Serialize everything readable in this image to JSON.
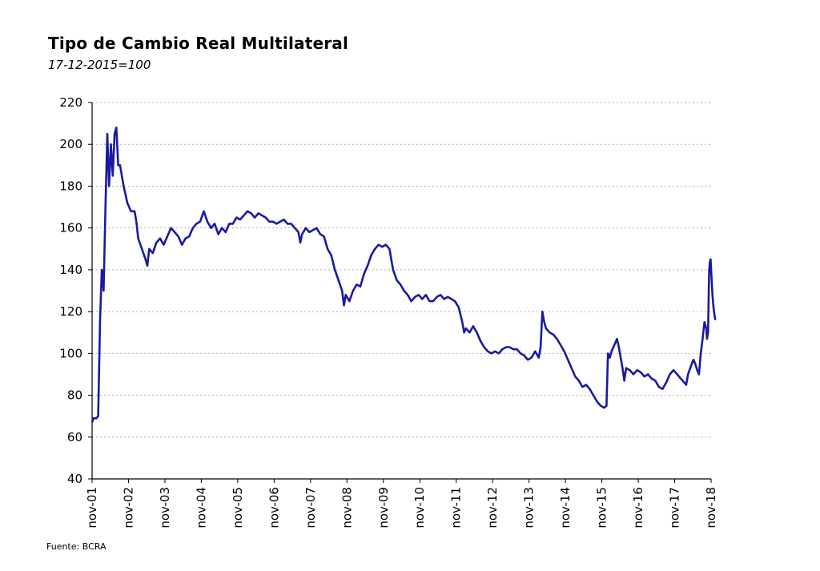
{
  "chart_data": {
    "type": "line",
    "title": "Tipo de Cambio Real Multilateral",
    "subtitle": "17-12-2015=100",
    "source": "Fuente: BCRA",
    "xlabel": "",
    "ylabel": "",
    "ylim": [
      40,
      220
    ],
    "yticks": [
      40,
      60,
      80,
      100,
      120,
      140,
      160,
      180,
      200,
      220
    ],
    "xlim": [
      2001.833,
      2018.833
    ],
    "xticks": [
      "nov-01",
      "nov-02",
      "nov-03",
      "nov-04",
      "nov-05",
      "nov-06",
      "nov-07",
      "nov-08",
      "nov-09",
      "nov-10",
      "nov-11",
      "nov-12",
      "nov-13",
      "nov-14",
      "nov-15",
      "nov-16",
      "nov-17",
      "nov-18"
    ],
    "grid": true,
    "line_color": "#1a1aa0",
    "series": [
      {
        "points": [
          [
            2001.833,
            67
          ],
          [
            2001.87,
            69
          ],
          [
            2001.95,
            69
          ],
          [
            2002.0,
            70
          ],
          [
            2002.05,
            115
          ],
          [
            2002.1,
            140
          ],
          [
            2002.15,
            130
          ],
          [
            2002.2,
            170
          ],
          [
            2002.25,
            205
          ],
          [
            2002.3,
            180
          ],
          [
            2002.35,
            200
          ],
          [
            2002.4,
            185
          ],
          [
            2002.45,
            205
          ],
          [
            2002.5,
            208
          ],
          [
            2002.55,
            190
          ],
          [
            2002.6,
            190
          ],
          [
            2002.7,
            180
          ],
          [
            2002.8,
            172
          ],
          [
            2002.9,
            168
          ],
          [
            2003.0,
            168
          ],
          [
            2003.05,
            163
          ],
          [
            2003.1,
            155
          ],
          [
            2003.2,
            150
          ],
          [
            2003.3,
            145
          ],
          [
            2003.35,
            142
          ],
          [
            2003.4,
            150
          ],
          [
            2003.5,
            148
          ],
          [
            2003.6,
            153
          ],
          [
            2003.7,
            155
          ],
          [
            2003.8,
            152
          ],
          [
            2003.9,
            156
          ],
          [
            2004.0,
            160
          ],
          [
            2004.1,
            158
          ],
          [
            2004.2,
            156
          ],
          [
            2004.3,
            152
          ],
          [
            2004.4,
            155
          ],
          [
            2004.5,
            156
          ],
          [
            2004.6,
            160
          ],
          [
            2004.7,
            162
          ],
          [
            2004.8,
            163
          ],
          [
            2004.9,
            168
          ],
          [
            2005.0,
            163
          ],
          [
            2005.1,
            160
          ],
          [
            2005.2,
            162
          ],
          [
            2005.3,
            157
          ],
          [
            2005.4,
            160
          ],
          [
            2005.5,
            158
          ],
          [
            2005.6,
            162
          ],
          [
            2005.7,
            162
          ],
          [
            2005.8,
            165
          ],
          [
            2005.9,
            164
          ],
          [
            2006.0,
            166
          ],
          [
            2006.1,
            168
          ],
          [
            2006.2,
            167
          ],
          [
            2006.3,
            165
          ],
          [
            2006.4,
            167
          ],
          [
            2006.5,
            166
          ],
          [
            2006.6,
            165
          ],
          [
            2006.7,
            163
          ],
          [
            2006.8,
            163
          ],
          [
            2006.9,
            162
          ],
          [
            2007.0,
            163
          ],
          [
            2007.1,
            164
          ],
          [
            2007.2,
            162
          ],
          [
            2007.3,
            162
          ],
          [
            2007.4,
            160
          ],
          [
            2007.5,
            158
          ],
          [
            2007.55,
            153
          ],
          [
            2007.6,
            157
          ],
          [
            2007.7,
            160
          ],
          [
            2007.8,
            158
          ],
          [
            2007.9,
            159
          ],
          [
            2008.0,
            160
          ],
          [
            2008.1,
            157
          ],
          [
            2008.2,
            156
          ],
          [
            2008.3,
            150
          ],
          [
            2008.4,
            147
          ],
          [
            2008.5,
            140
          ],
          [
            2008.6,
            135
          ],
          [
            2008.7,
            130
          ],
          [
            2008.75,
            123
          ],
          [
            2008.8,
            128
          ],
          [
            2008.9,
            125
          ],
          [
            2009.0,
            130
          ],
          [
            2009.1,
            133
          ],
          [
            2009.2,
            132
          ],
          [
            2009.3,
            138
          ],
          [
            2009.4,
            142
          ],
          [
            2009.5,
            147
          ],
          [
            2009.6,
            150
          ],
          [
            2009.7,
            152
          ],
          [
            2009.8,
            151
          ],
          [
            2009.9,
            152
          ],
          [
            2010.0,
            150
          ],
          [
            2010.05,
            145
          ],
          [
            2010.1,
            140
          ],
          [
            2010.2,
            135
          ],
          [
            2010.3,
            133
          ],
          [
            2010.4,
            130
          ],
          [
            2010.5,
            128
          ],
          [
            2010.6,
            125
          ],
          [
            2010.7,
            127
          ],
          [
            2010.8,
            128
          ],
          [
            2010.9,
            126
          ],
          [
            2011.0,
            128
          ],
          [
            2011.1,
            125
          ],
          [
            2011.2,
            125
          ],
          [
            2011.3,
            127
          ],
          [
            2011.4,
            128
          ],
          [
            2011.5,
            126
          ],
          [
            2011.6,
            127
          ],
          [
            2011.7,
            126
          ],
          [
            2011.8,
            125
          ],
          [
            2011.9,
            122
          ],
          [
            2012.0,
            115
          ],
          [
            2012.05,
            110
          ],
          [
            2012.1,
            112
          ],
          [
            2012.2,
            110
          ],
          [
            2012.3,
            113
          ],
          [
            2012.4,
            110
          ],
          [
            2012.5,
            106
          ],
          [
            2012.6,
            103
          ],
          [
            2012.7,
            101
          ],
          [
            2012.8,
            100
          ],
          [
            2012.9,
            101
          ],
          [
            2013.0,
            100
          ],
          [
            2013.1,
            102
          ],
          [
            2013.2,
            103
          ],
          [
            2013.3,
            103
          ],
          [
            2013.4,
            102
          ],
          [
            2013.5,
            102
          ],
          [
            2013.6,
            100
          ],
          [
            2013.7,
            99
          ],
          [
            2013.8,
            97
          ],
          [
            2013.9,
            98
          ],
          [
            2014.0,
            101
          ],
          [
            2014.1,
            98
          ],
          [
            2014.15,
            103
          ],
          [
            2014.2,
            120
          ],
          [
            2014.25,
            115
          ],
          [
            2014.3,
            112
          ],
          [
            2014.4,
            110
          ],
          [
            2014.5,
            109
          ],
          [
            2014.6,
            107
          ],
          [
            2014.7,
            104
          ],
          [
            2014.8,
            101
          ],
          [
            2014.9,
            97
          ],
          [
            2015.0,
            93
          ],
          [
            2015.1,
            89
          ],
          [
            2015.2,
            87
          ],
          [
            2015.3,
            84
          ],
          [
            2015.4,
            85
          ],
          [
            2015.5,
            83
          ],
          [
            2015.6,
            80
          ],
          [
            2015.7,
            77
          ],
          [
            2015.8,
            75
          ],
          [
            2015.9,
            74
          ],
          [
            2015.96,
            75
          ],
          [
            2016.0,
            100
          ],
          [
            2016.05,
            98
          ],
          [
            2016.1,
            101
          ],
          [
            2016.2,
            105
          ],
          [
            2016.25,
            107
          ],
          [
            2016.3,
            103
          ],
          [
            2016.4,
            93
          ],
          [
            2016.45,
            87
          ],
          [
            2016.5,
            93
          ],
          [
            2016.6,
            92
          ],
          [
            2016.7,
            90
          ],
          [
            2016.8,
            92
          ],
          [
            2016.9,
            91
          ],
          [
            2017.0,
            89
          ],
          [
            2017.1,
            90
          ],
          [
            2017.2,
            88
          ],
          [
            2017.3,
            87
          ],
          [
            2017.4,
            84
          ],
          [
            2017.5,
            83
          ],
          [
            2017.6,
            86
          ],
          [
            2017.7,
            90
          ],
          [
            2017.8,
            92
          ],
          [
            2017.9,
            90
          ],
          [
            2018.0,
            88
          ],
          [
            2018.1,
            86
          ],
          [
            2018.15,
            85
          ],
          [
            2018.2,
            90
          ],
          [
            2018.3,
            95
          ],
          [
            2018.35,
            97
          ],
          [
            2018.4,
            95
          ],
          [
            2018.45,
            92
          ],
          [
            2018.5,
            90
          ],
          [
            2018.55,
            100
          ],
          [
            2018.6,
            107
          ],
          [
            2018.65,
            115
          ],
          [
            2018.7,
            112
          ],
          [
            2018.72,
            107
          ],
          [
            2018.75,
            110
          ],
          [
            2018.78,
            140
          ],
          [
            2018.8,
            144
          ],
          [
            2018.82,
            145
          ],
          [
            2018.84,
            138
          ],
          [
            2018.87,
            128
          ],
          [
            2018.9,
            122
          ],
          [
            2018.93,
            118
          ],
          [
            2018.95,
            116
          ]
        ]
      }
    ]
  }
}
